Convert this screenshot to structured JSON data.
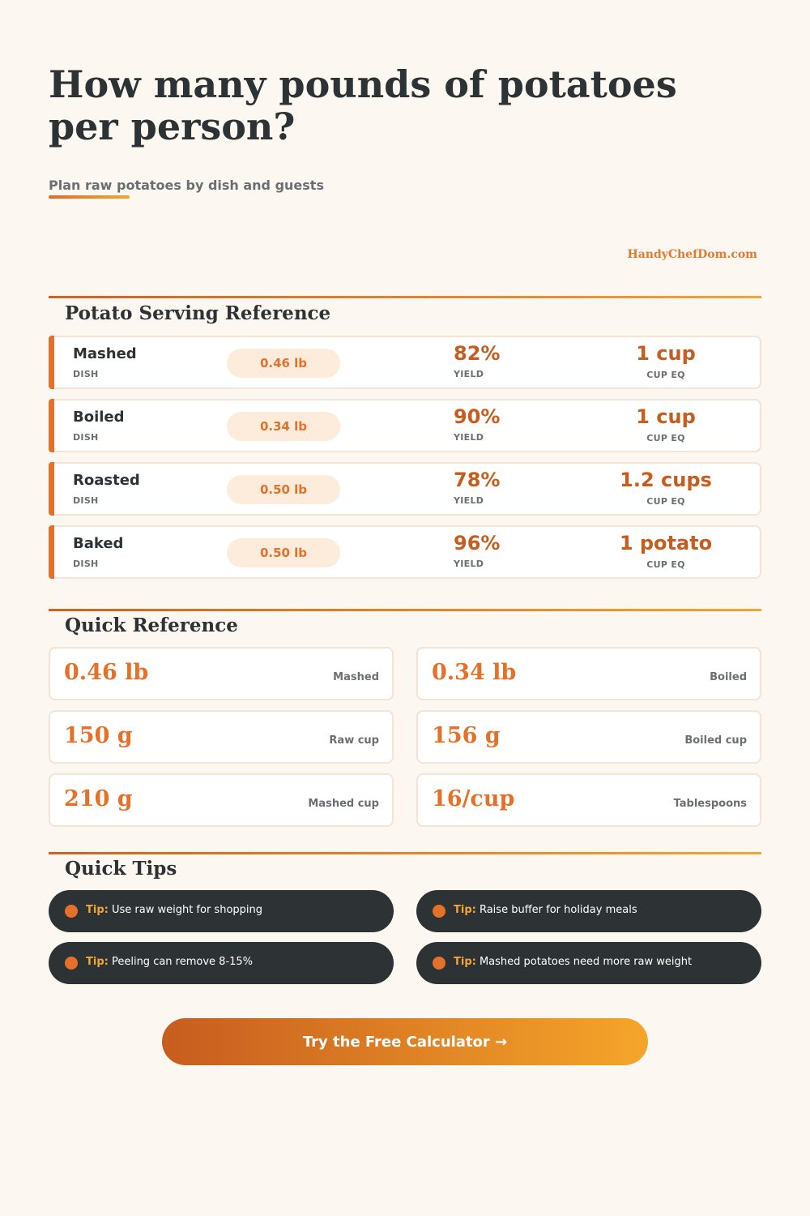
{
  "header": {
    "title": "How many pounds of potatoes per person?",
    "subtitle": "Plan raw potatoes by dish and guests",
    "brand": "HandyChefDom.com"
  },
  "serving_reference": {
    "title": "Potato Serving Reference",
    "dish_caption": "DISH",
    "yield_caption": "YIELD",
    "cup_caption": "CUP EQ",
    "rows": [
      {
        "dish": "Mashed",
        "weight": "0.46 lb",
        "yield": "82%",
        "cup": "1 cup"
      },
      {
        "dish": "Boiled",
        "weight": "0.34 lb",
        "yield": "90%",
        "cup": "1 cup"
      },
      {
        "dish": "Roasted",
        "weight": "0.50 lb",
        "yield": "78%",
        "cup": "1.2 cups"
      },
      {
        "dish": "Baked",
        "weight": "0.50 lb",
        "yield": "96%",
        "cup": "1 potato"
      }
    ]
  },
  "quick_reference": {
    "title": "Quick Reference",
    "items": [
      {
        "value": "0.46 lb",
        "label": "Mashed"
      },
      {
        "value": "0.34 lb",
        "label": "Boiled"
      },
      {
        "value": "150 g",
        "label": "Raw cup"
      },
      {
        "value": "156 g",
        "label": "Boiled cup"
      },
      {
        "value": "210 g",
        "label": "Mashed cup"
      },
      {
        "value": "16/cup",
        "label": "Tablespoons"
      }
    ]
  },
  "tips": {
    "title": "Quick Tips",
    "prefix": "Tip:",
    "items": [
      "Use raw weight for shopping",
      "Raise buffer for holiday meals",
      "Peeling can remove 8-15%",
      "Mashed potatoes need more raw weight"
    ]
  },
  "cta": {
    "label": "Try the Free Calculator →"
  },
  "colors": {
    "accent": "#e4712a",
    "accent_dark": "#c75c1f",
    "accent_light": "#f3a632",
    "background": "#fdf7f1",
    "dark": "#2d3335"
  }
}
